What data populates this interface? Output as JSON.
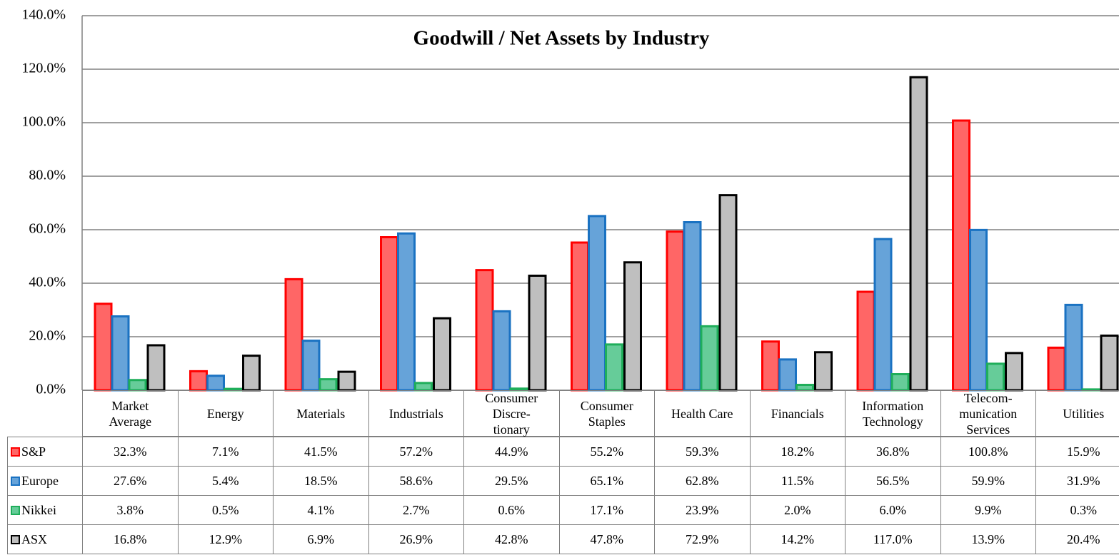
{
  "chart_data": {
    "type": "bar",
    "title": "Goodwill  / Net Assets by Industry",
    "categories": [
      "Market\nAverage",
      "Energy",
      "Materials",
      "Industrials",
      "Consumer\nDiscre-\ntionary",
      "Consumer\nStaples",
      "Health Care",
      "Financials",
      "Information\nTechnology",
      "Telecom-\nmunication\nServices",
      "Utilities"
    ],
    "series": [
      {
        "name": "S&P",
        "color": "#ff0000",
        "fill": "#ff6666",
        "values": [
          32.3,
          7.1,
          41.5,
          57.2,
          44.9,
          55.2,
          59.3,
          18.2,
          36.8,
          100.8,
          15.9
        ],
        "value_labels": [
          "32.3%",
          "7.1%",
          "41.5%",
          "57.2%",
          "44.9%",
          "55.2%",
          "59.3%",
          "18.2%",
          "36.8%",
          "100.8%",
          "15.9%"
        ]
      },
      {
        "name": "Europe",
        "color": "#1a72c2",
        "fill": "#66a3d9",
        "values": [
          27.6,
          5.4,
          18.5,
          58.6,
          29.5,
          65.1,
          62.8,
          11.5,
          56.5,
          59.9,
          31.9
        ],
        "value_labels": [
          "27.6%",
          "5.4%",
          "18.5%",
          "58.6%",
          "29.5%",
          "65.1%",
          "62.8%",
          "11.5%",
          "56.5%",
          "59.9%",
          "31.9%"
        ]
      },
      {
        "name": "Nikkei",
        "color": "#1fae5a",
        "fill": "#66cc99",
        "values": [
          3.8,
          0.5,
          4.1,
          2.7,
          0.6,
          17.1,
          23.9,
          2.0,
          6.0,
          9.9,
          0.3
        ],
        "value_labels": [
          "3.8%",
          "0.5%",
          "4.1%",
          "2.7%",
          "0.6%",
          "17.1%",
          "23.9%",
          "2.0%",
          "6.0%",
          "9.9%",
          "0.3%"
        ]
      },
      {
        "name": "ASX",
        "color": "#000000",
        "fill": "#bfbfbf",
        "values": [
          16.8,
          12.9,
          6.9,
          26.9,
          42.8,
          47.8,
          72.9,
          14.2,
          117.0,
          13.9,
          20.4
        ],
        "value_labels": [
          "16.8%",
          "12.9%",
          "6.9%",
          "26.9%",
          "42.8%",
          "47.8%",
          "72.9%",
          "14.2%",
          "117.0%",
          "13.9%",
          "20.4%"
        ]
      }
    ],
    "ylim": [
      0,
      140
    ],
    "yticks": [
      {
        "value": 0,
        "label": "0.0%"
      },
      {
        "value": 20,
        "label": "20.0%"
      },
      {
        "value": 40,
        "label": "40.0%"
      },
      {
        "value": 60,
        "label": "60.0%"
      },
      {
        "value": 80,
        "label": "80.0%"
      },
      {
        "value": 100,
        "label": "100.0%"
      },
      {
        "value": 120,
        "label": "120.0%"
      },
      {
        "value": 140,
        "label": "140.0%"
      }
    ],
    "grid": true
  }
}
